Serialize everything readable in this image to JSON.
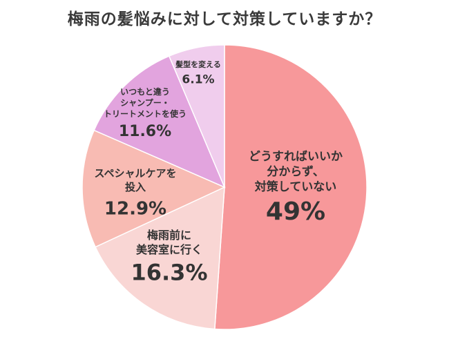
{
  "chart_data": {
    "type": "pie",
    "title": "梅雨の髪悩みに対して対策していますか？",
    "start_angle_deg": 0,
    "direction": "clockwise",
    "slices": [
      {
        "label_lines": [
          "どうすればいいか",
          "分からず、",
          "対策していない"
        ],
        "value": 49,
        "value_label": "49%",
        "color": "#F7989A"
      },
      {
        "label_lines": [
          "梅雨前に",
          "美容室に行く"
        ],
        "value": 16.3,
        "value_label": "16.3%",
        "color": "#F9D6D4"
      },
      {
        "label_lines": [
          "スペシャルケアを",
          "投入"
        ],
        "value": 12.9,
        "value_label": "12.9%",
        "color": "#F8BBB3"
      },
      {
        "label_lines": [
          "いつもと違う",
          "シャンプー・",
          "トリートメントを使う"
        ],
        "value": 11.6,
        "value_label": "11.6%",
        "color": "#E2A4DE"
      },
      {
        "label_lines": [
          "髪型を変える"
        ],
        "value": 6.1,
        "value_label": "6.1%",
        "color": "#F0CDED"
      }
    ]
  }
}
